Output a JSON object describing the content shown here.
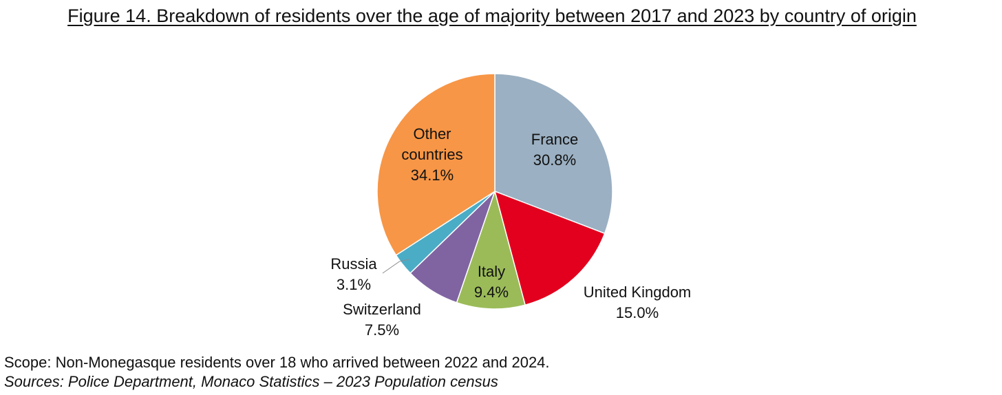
{
  "title": "Figure 14. Breakdown of residents over the age of majority between 2017 and 2023 by country of origin",
  "scope": "Scope: Non-Monegasque residents over 18 who arrived between 2022 and 2024.",
  "sources": "Sources: Police Department, Monaco Statistics – 2023 Population census",
  "chart_data": {
    "type": "pie",
    "title": "Figure 14. Breakdown of residents over the age of majority between 2017 and 2023 by country of origin",
    "slices": [
      {
        "label": "France",
        "value": 30.8,
        "value_label": "30.8%",
        "color": "#9bb0c2"
      },
      {
        "label": "United Kingdom",
        "value": 15.0,
        "value_label": "15.0%",
        "color": "#e2001e"
      },
      {
        "label": "Italy",
        "value": 9.4,
        "value_label": "9.4%",
        "color": "#9bbb59"
      },
      {
        "label": "Switzerland",
        "value": 7.5,
        "value_label": "7.5%",
        "color": "#8064a2"
      },
      {
        "label": "Russia",
        "value": 3.1,
        "value_label": "3.1%",
        "color": "#4bacc6"
      },
      {
        "label": "Other countries",
        "value": 34.1,
        "value_label": "34.1%",
        "color": "#f79646"
      }
    ]
  }
}
